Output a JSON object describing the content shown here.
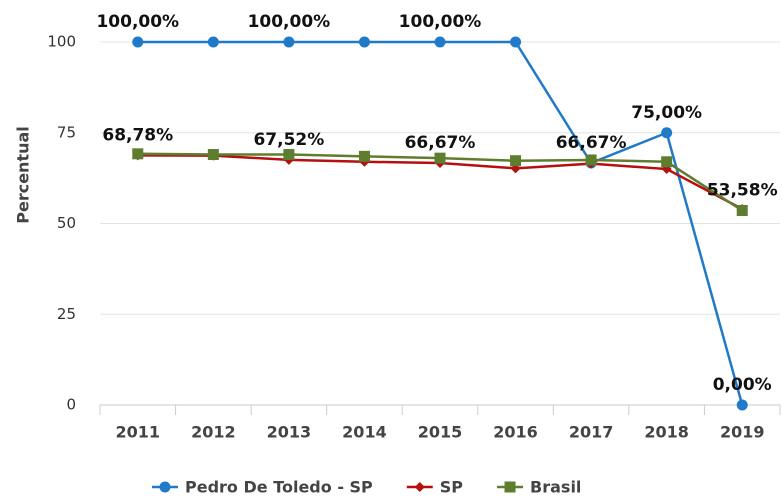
{
  "chart_data": {
    "type": "line",
    "categories": [
      "2011",
      "2012",
      "2013",
      "2014",
      "2015",
      "2016",
      "2017",
      "2018",
      "2019"
    ],
    "y_label": "Percentual",
    "ylim": [
      0,
      100
    ],
    "yticks": [
      0,
      25,
      50,
      75,
      100
    ],
    "grid": true,
    "series": [
      {
        "name": "Pedro De Toledo - SP",
        "color": "#1f7ac9",
        "marker": "circle",
        "values": [
          100,
          100,
          100,
          100,
          100,
          100,
          66.67,
          75,
          0
        ],
        "value_labels": [
          "100,00%",
          null,
          "100,00%",
          null,
          "100,00%",
          null,
          "66,67%",
          "75,00%",
          "0,00%"
        ]
      },
      {
        "name": "SP",
        "color": "#b50f0f",
        "marker": "diamond",
        "values": [
          68.78,
          68.7,
          67.52,
          67.0,
          66.67,
          65.2,
          66.5,
          65.0,
          54.0
        ],
        "value_labels": [
          "68,78%",
          null,
          "67,52%",
          null,
          "66,67%",
          null,
          null,
          null,
          null
        ]
      },
      {
        "name": "Brasil",
        "color": "#5e7d2e",
        "marker": "square",
        "values": [
          69.2,
          69.0,
          69.0,
          68.5,
          68.0,
          67.3,
          67.5,
          67.0,
          53.58
        ],
        "value_labels": [
          null,
          null,
          null,
          null,
          null,
          null,
          null,
          null,
          "53,58%"
        ]
      }
    ]
  }
}
